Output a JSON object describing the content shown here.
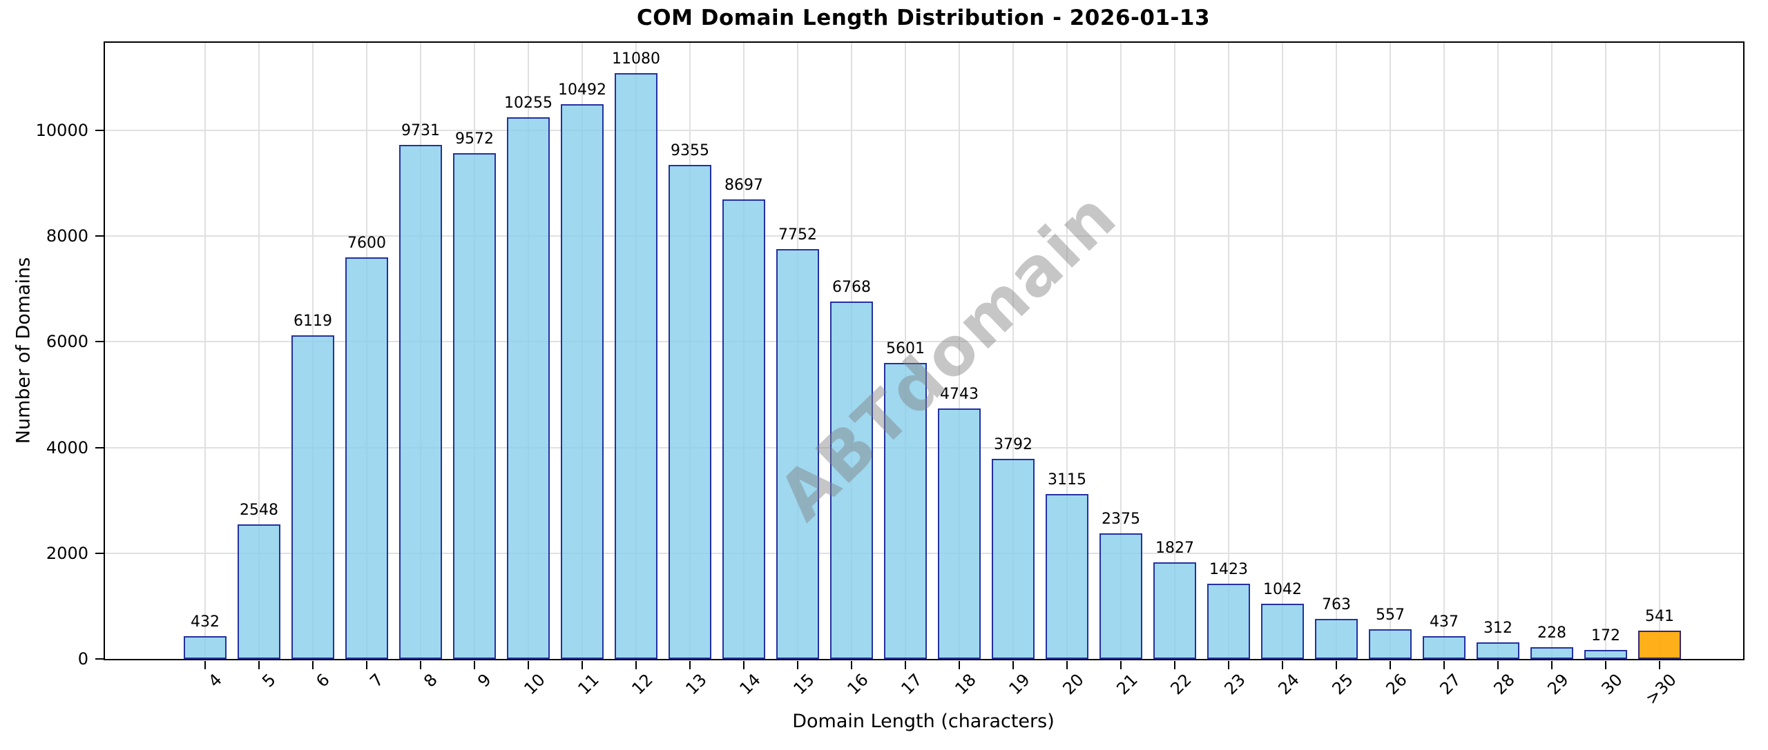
{
  "page": {
    "background": "#FFFFFF"
  },
  "watermark": "ABTdomain",
  "chart_data": {
    "type": "bar",
    "title": "COM Domain Length Distribution - 2026-01-13",
    "xlabel": "Domain Length (characters)",
    "ylabel": "Number of Domains",
    "categories": [
      "4",
      "5",
      "6",
      "7",
      "8",
      "9",
      "10",
      "11",
      "12",
      "13",
      "14",
      "15",
      "16",
      "17",
      "18",
      "19",
      "20",
      "21",
      "22",
      "23",
      "24",
      "25",
      "26",
      "27",
      "28",
      "29",
      "30",
      ">30"
    ],
    "values": [
      432,
      2548,
      6119,
      7600,
      9731,
      9572,
      10255,
      10492,
      11080,
      9355,
      8697,
      7752,
      6768,
      5601,
      4743,
      3792,
      3115,
      2375,
      1827,
      1423,
      1042,
      763,
      557,
      437,
      312,
      228,
      172,
      541
    ],
    "value_labels": true,
    "yticks": [
      0,
      2000,
      4000,
      6000,
      8000,
      10000
    ],
    "ylim": [
      0,
      11660
    ],
    "grid": true,
    "legend_position": "none",
    "bar_fill": "rgba(135,206,235,0.8)",
    "bar_edge": "rgba(0,0,139,0.78)",
    "highlight_index": 27,
    "highlight_fill": "rgba(255,166,0,0.9)",
    "grid_color": "#E0E0E0",
    "axis_color": "#000000",
    "value_label_color": "#000000",
    "watermark_color": "rgba(128,128,128,0.45)"
  }
}
